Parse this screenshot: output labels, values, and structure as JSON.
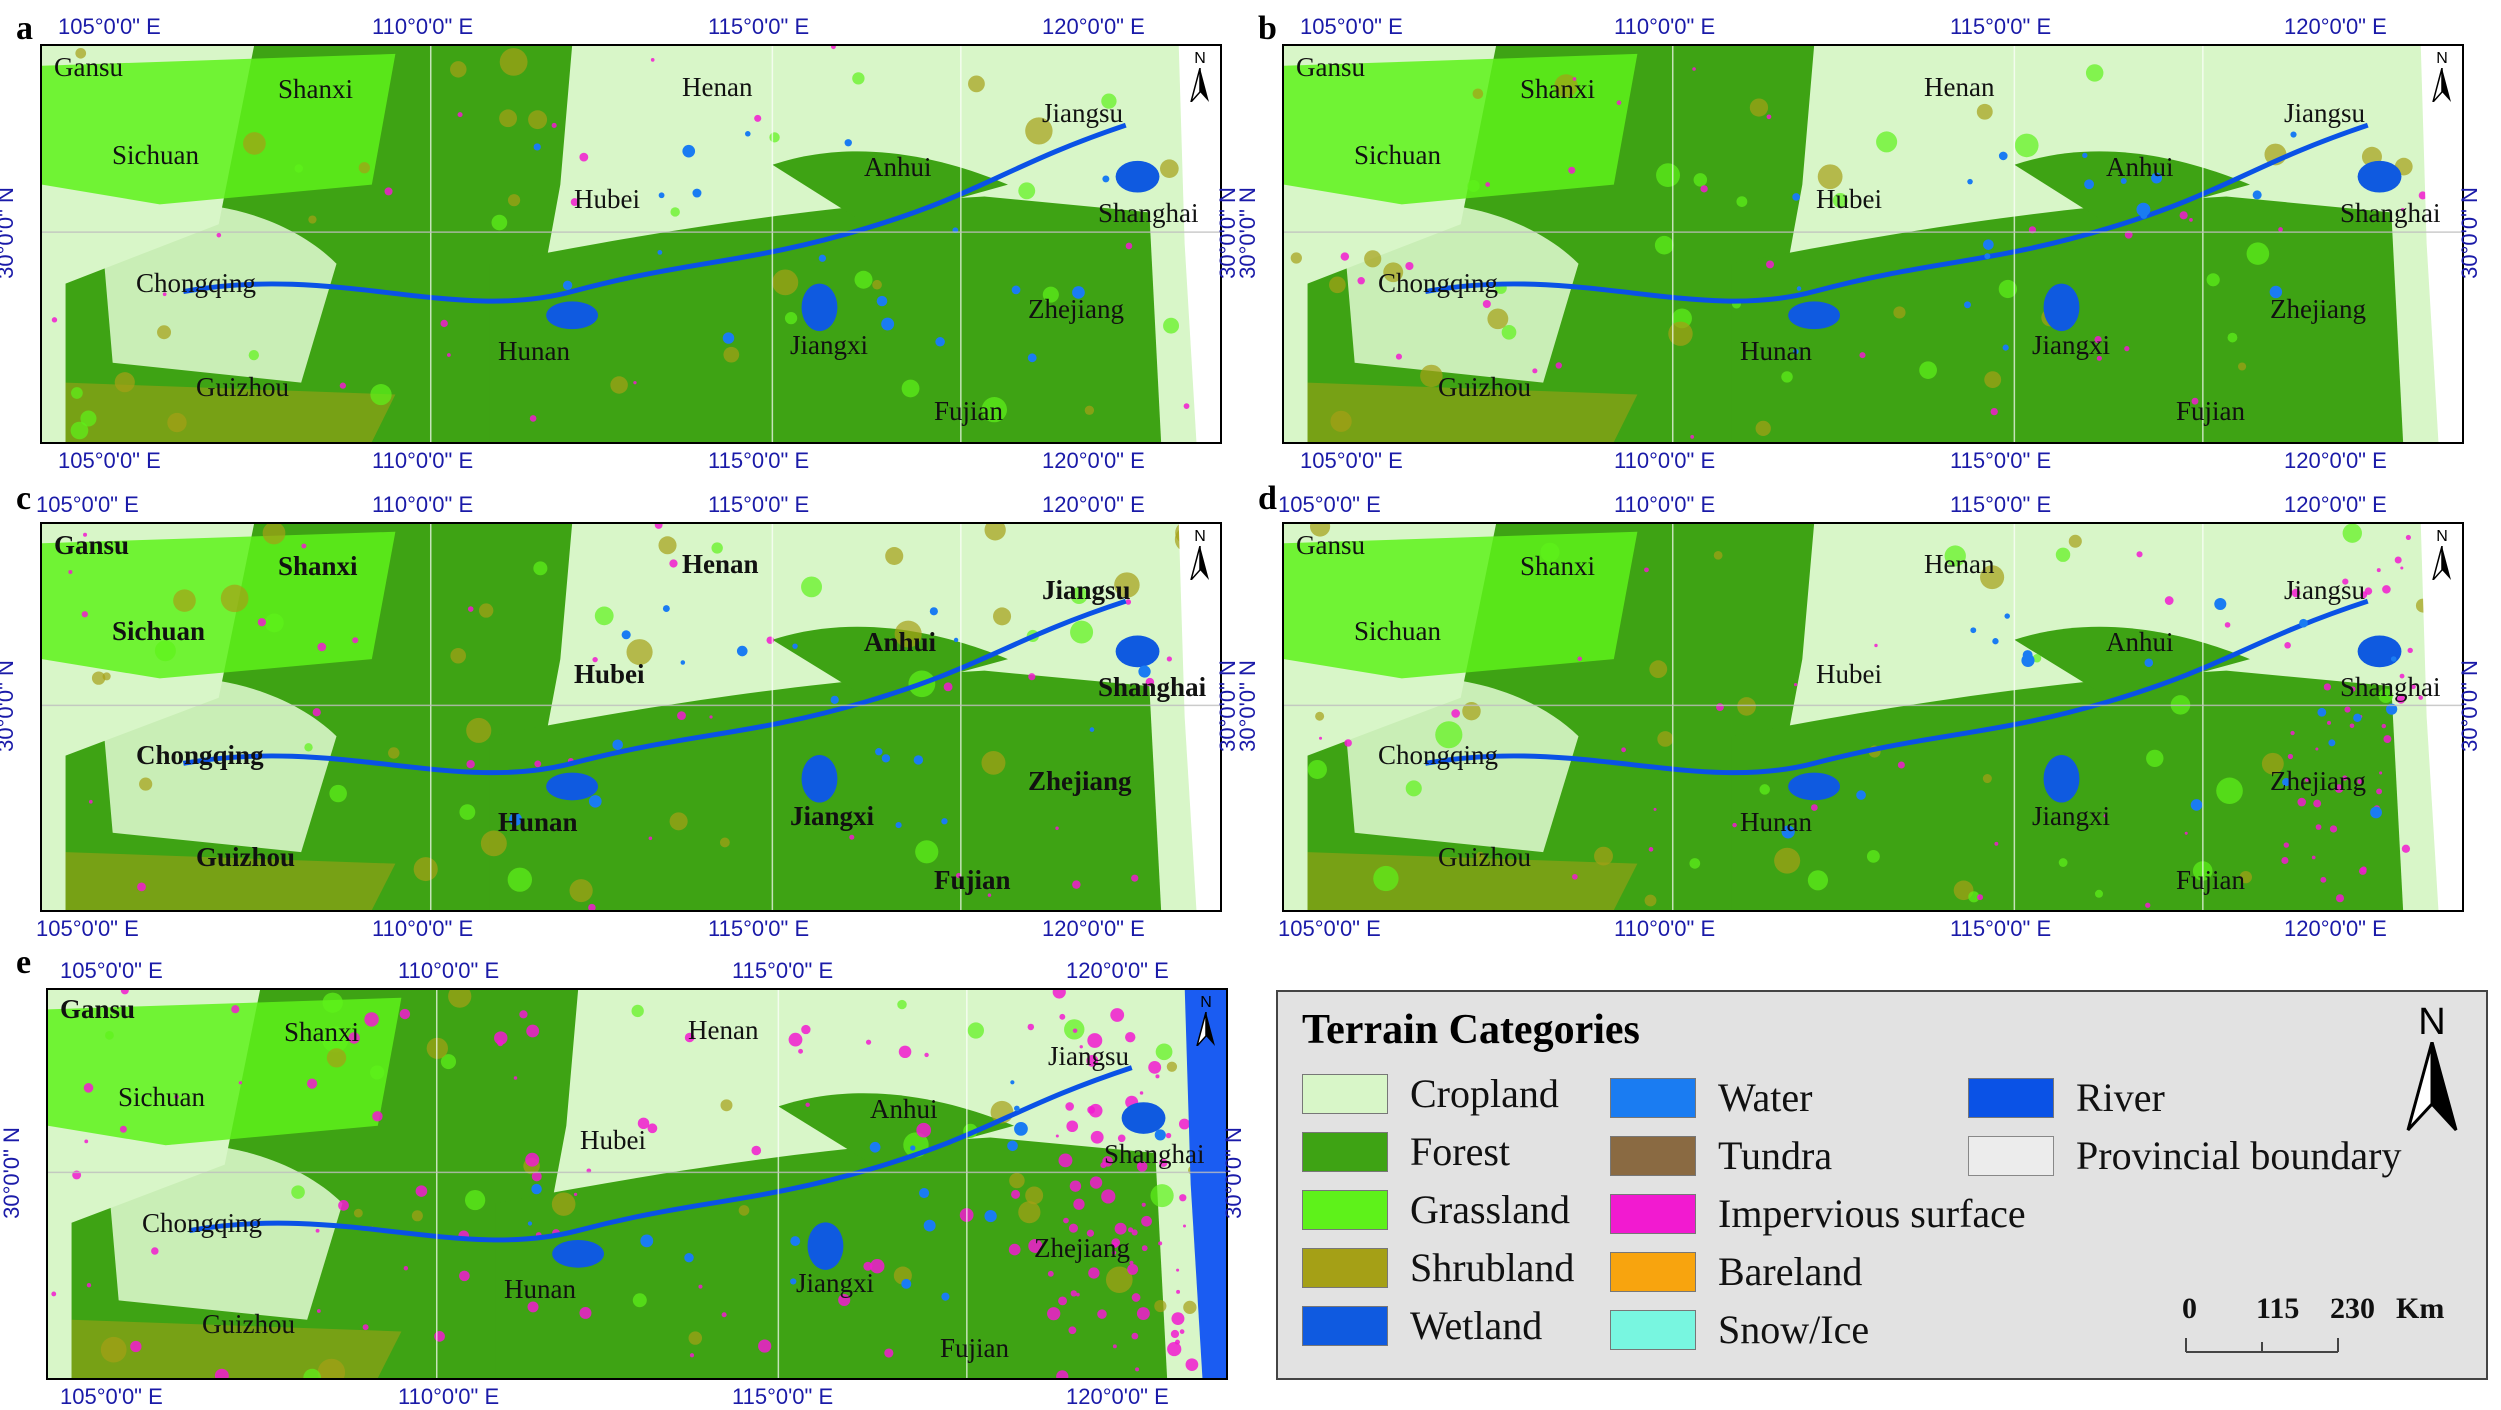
{
  "colors": {
    "cropland": "#d8f6c8",
    "forest": "#3ea314",
    "grassland": "#5ef21a",
    "shrubland": "#a5a016",
    "wetland": "#0f5ae0",
    "water": "#1a7cf2",
    "tundra": "#8a6a42",
    "impervious": "#f21ad0",
    "bareland": "#f8a40e",
    "snow_ice": "#78f6e0",
    "river": "#0a52e6",
    "boundary": "#ffffff",
    "coord_text": "#1a1aa8"
  },
  "panels": [
    {
      "letter": "a"
    },
    {
      "letter": "b"
    },
    {
      "letter": "c"
    },
    {
      "letter": "d"
    },
    {
      "letter": "e"
    }
  ],
  "coords": {
    "lon_105": "105°0'0\" E",
    "lon_110": "110°0'0\" E",
    "lon_115": "115°0'0\" E",
    "lon_120": "120°0'0\" E",
    "lat_30": "30°0'0\" N"
  },
  "provinces": {
    "gansu": "Gansu",
    "shanxi": "Shanxi",
    "henan": "Henan",
    "jiangsu": "Jiangsu",
    "sichuan": "Sichuan",
    "hubei": "Hubei",
    "anhui": "Anhui",
    "shanghai": "Shanghai",
    "chongqing": "Chongqing",
    "hunan": "Hunan",
    "jiangxi": "Jiangxi",
    "zhejiang": "Zhejiang",
    "guizhou": "Guizhou",
    "fujian": "Fujian"
  },
  "north_label": "N",
  "legend": {
    "title": "Terrain Categories",
    "north": "N",
    "items": [
      {
        "label": "Cropland",
        "color_key": "cropland"
      },
      {
        "label": "Forest",
        "color_key": "forest"
      },
      {
        "label": "Grassland",
        "color_key": "grassland"
      },
      {
        "label": "Shrubland",
        "color_key": "shrubland"
      },
      {
        "label": "Wetland",
        "color_key": "wetland"
      },
      {
        "label": "Water",
        "color_key": "water"
      },
      {
        "label": "Tundra",
        "color_key": "tundra"
      },
      {
        "label": "Impervious surface",
        "color_key": "impervious"
      },
      {
        "label": "Bareland",
        "color_key": "bareland"
      },
      {
        "label": "Snow/Ice",
        "color_key": "snow_ice"
      },
      {
        "label": "River",
        "color_key": "river"
      },
      {
        "label": "Provincial boundary",
        "color_key": "boundary"
      }
    ],
    "scale": {
      "zero": "0",
      "mid": "115",
      "max": "230",
      "unit": "Km"
    }
  }
}
